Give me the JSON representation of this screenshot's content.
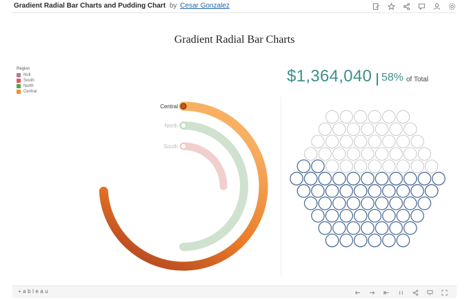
{
  "header": {
    "title": "Gradient Radial Bar Charts and Pudding Chart",
    "by": "by",
    "author": "Cesar Gonzalez",
    "icons": [
      "edit-icon",
      "star-icon",
      "share-icon",
      "comment-icon",
      "subscribe-icon",
      "settings-icon"
    ]
  },
  "dashboard_title": "Gradient Radial Bar Charts",
  "legend": {
    "title": "Region",
    "items": [
      {
        "label": "Null",
        "color": "#b07aa1"
      },
      {
        "label": "South",
        "color": "#e15759"
      },
      {
        "label": "North",
        "color": "#59a14f"
      },
      {
        "label": "Central",
        "color": "#f28e2b"
      }
    ]
  },
  "kpi": {
    "total": "$1,364,040",
    "percent": "58%",
    "of_total": "of Total"
  },
  "chart_data": [
    {
      "type": "radial_bar",
      "categories": [
        "Central",
        "North",
        "South"
      ],
      "values": [
        0.74,
        0.5,
        0.25
      ],
      "value_unit": "fraction of full circle",
      "selected": "Central",
      "colors": {
        "Central": {
          "start": "#f7b063",
          "end": "#a83a1f"
        },
        "North": {
          "color": "#a8c9a8"
        },
        "South": {
          "color": "#e6a8a8"
        }
      }
    },
    {
      "type": "pudding",
      "total_units": 100,
      "filled_units": 58,
      "filled_percent": 58,
      "filled_color": "#4e6d96",
      "empty_color": "#bbbbbb"
    }
  ],
  "footer": {
    "logo": "+ableau",
    "icons": [
      "undo-icon",
      "redo-icon",
      "revert-icon",
      "pause-icon",
      "share-icon",
      "download-icon",
      "fullscreen-icon"
    ]
  }
}
